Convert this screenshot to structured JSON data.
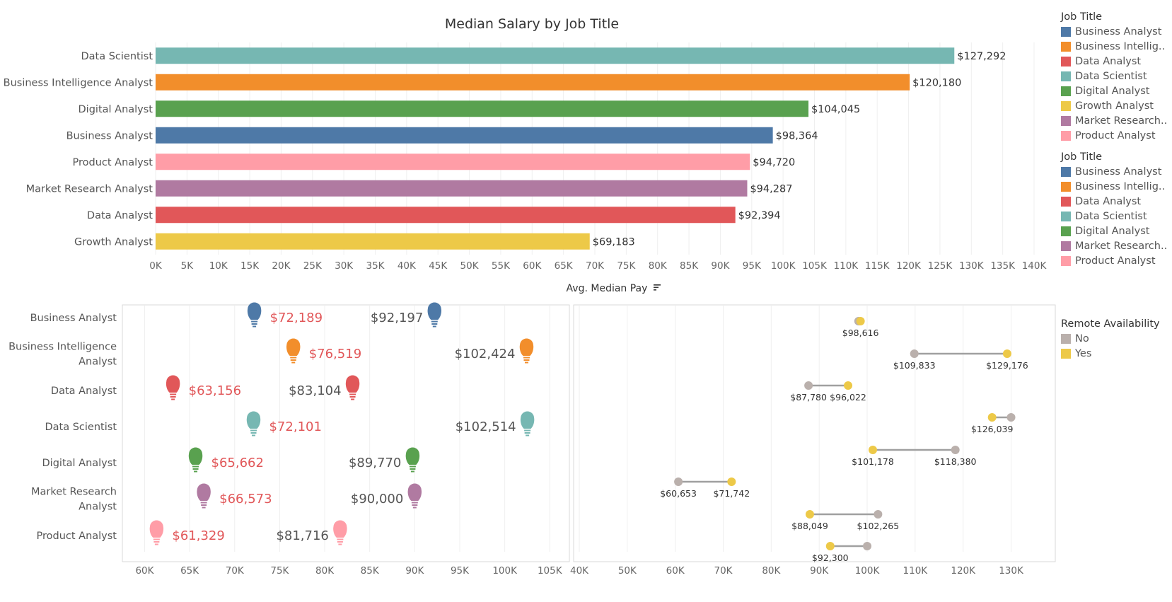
{
  "colors": {
    "Business Analyst": "#4e79a7",
    "Business Intelligence Analyst": "#f28e2b",
    "Data Analyst": "#e15759",
    "Data Scientist": "#76b7b2",
    "Digital Analyst": "#59a14f",
    "Growth Analyst": "#edc948",
    "Market Research Analyst": "#b07aa1",
    "Product Analyst": "#ff9da7",
    "remote_no": "#bab0ac",
    "remote_yes": "#edc948",
    "low_label": "#e15759",
    "high_label": "#555555"
  },
  "legends": [
    {
      "title": "Job Title",
      "items": [
        {
          "label": "Business Analyst",
          "color": "#4e79a7"
        },
        {
          "label": "Business Intellig..",
          "color": "#f28e2b"
        },
        {
          "label": "Data Analyst",
          "color": "#e15759"
        },
        {
          "label": "Data Scientist",
          "color": "#76b7b2"
        },
        {
          "label": "Digital Analyst",
          "color": "#59a14f"
        },
        {
          "label": "Growth Analyst",
          "color": "#edc948"
        },
        {
          "label": "Market Research..",
          "color": "#b07aa1"
        },
        {
          "label": "Product Analyst",
          "color": "#ff9da7"
        }
      ]
    },
    {
      "title": "Job Title",
      "items": [
        {
          "label": "Business Analyst",
          "color": "#4e79a7"
        },
        {
          "label": "Business Intellig..",
          "color": "#f28e2b"
        },
        {
          "label": "Data Analyst",
          "color": "#e15759"
        },
        {
          "label": "Data Scientist",
          "color": "#76b7b2"
        },
        {
          "label": "Digital Analyst",
          "color": "#59a14f"
        },
        {
          "label": "Market Research..",
          "color": "#b07aa1"
        },
        {
          "label": "Product Analyst",
          "color": "#ff9da7"
        }
      ]
    },
    {
      "title": "Remote Availability",
      "items": [
        {
          "label": "No",
          "color": "#bab0ac"
        },
        {
          "label": "Yes",
          "color": "#edc948"
        }
      ]
    }
  ],
  "chart_data": [
    {
      "type": "bar",
      "orientation": "horizontal",
      "title": "Median Salary by Job Title",
      "xlabel": "Avg. Median Pay",
      "sort_icon": "sort-descending-icon",
      "xlim": [
        0,
        140000
      ],
      "x_ticks": [
        0,
        5000,
        10000,
        15000,
        20000,
        25000,
        30000,
        35000,
        40000,
        45000,
        50000,
        55000,
        60000,
        65000,
        70000,
        75000,
        80000,
        85000,
        90000,
        95000,
        100000,
        105000,
        110000,
        115000,
        120000,
        125000,
        130000,
        135000,
        140000
      ],
      "x_tick_labels": [
        "0K",
        "5K",
        "10K",
        "15K",
        "20K",
        "25K",
        "30K",
        "35K",
        "40K",
        "45K",
        "50K",
        "55K",
        "60K",
        "65K",
        "70K",
        "75K",
        "80K",
        "85K",
        "90K",
        "95K",
        "100K",
        "105K",
        "110K",
        "115K",
        "120K",
        "125K",
        "130K",
        "135K",
        "140K"
      ],
      "grid": "vertical",
      "categories": [
        "Data Scientist",
        "Business Intelligence Analyst",
        "Digital Analyst",
        "Business Analyst",
        "Product Analyst",
        "Market Research Analyst",
        "Data Analyst",
        "Growth Analyst"
      ],
      "values": [
        127292,
        120180,
        104045,
        98364,
        94720,
        94287,
        92394,
        69183
      ],
      "data_labels": [
        "$127,292",
        "$120,180",
        "$104,045",
        "$98,364",
        "$94,720",
        "$94,287",
        "$92,394",
        "$69,183"
      ]
    },
    {
      "type": "scatter",
      "marker": "lightbulb-icon",
      "xlim": [
        58000,
        106000
      ],
      "x_ticks": [
        60000,
        65000,
        70000,
        75000,
        80000,
        85000,
        90000,
        95000,
        100000,
        105000
      ],
      "x_tick_labels": [
        "60K",
        "65K",
        "70K",
        "75K",
        "80K",
        "85K",
        "90K",
        "95K",
        "100K",
        "105K"
      ],
      "grid": "vertical",
      "categories": [
        "Business Analyst",
        "Business Intelligence Analyst",
        "Data Analyst",
        "Data Scientist",
        "Digital Analyst",
        "Market Research Analyst",
        "Product Analyst"
      ],
      "category_labels": [
        [
          "Business Analyst"
        ],
        [
          "Business Intelligence",
          "Analyst"
        ],
        [
          "Data Analyst"
        ],
        [
          "Data Scientist"
        ],
        [
          "Digital Analyst"
        ],
        [
          "Market Research",
          "Analyst"
        ],
        [
          "Product Analyst"
        ]
      ],
      "series": [
        {
          "values": [
            72189,
            76519,
            63156,
            72101,
            65662,
            66573,
            61329
          ],
          "data_labels": [
            "$72,189",
            "$76,519",
            "$63,156",
            "$72,101",
            "$65,662",
            "$66,573",
            "$61,329"
          ]
        },
        {
          "values": [
            92197,
            102424,
            83104,
            102514,
            89770,
            90000,
            81716
          ],
          "data_labels": [
            "$92,197",
            "$102,424",
            "$83,104",
            "$102,514",
            "$89,770",
            "$90,000",
            "$81,716"
          ]
        }
      ]
    },
    {
      "type": "dumbbell",
      "xlim": [
        40000,
        137000
      ],
      "x_ticks": [
        40000,
        50000,
        60000,
        70000,
        80000,
        90000,
        100000,
        110000,
        120000,
        130000
      ],
      "x_tick_labels": [
        "40K",
        "50K",
        "60K",
        "70K",
        "80K",
        "90K",
        "100K",
        "110K",
        "120K",
        "130K"
      ],
      "grid": "vertical",
      "rows": [
        {
          "no": 98200,
          "yes": 98616,
          "labels": [
            {
              "text": "$98,616",
              "value": 98616
            }
          ]
        },
        {
          "no": 109833,
          "yes": 129176,
          "labels": [
            {
              "text": "$109,833",
              "value": 109833
            },
            {
              "text": "$129,176",
              "value": 129176
            }
          ]
        },
        {
          "no": 87780,
          "yes": 96022,
          "labels": [
            {
              "text": "$87,780",
              "value": 87780
            },
            {
              "text": "$96,022",
              "value": 96022
            }
          ]
        },
        {
          "no": 130000,
          "yes": 126039,
          "labels": [
            {
              "text": "$126,039",
              "value": 126039
            }
          ]
        },
        {
          "no": 118380,
          "yes": 101178,
          "labels": [
            {
              "text": "$101,178",
              "value": 101178
            },
            {
              "text": "$118,380",
              "value": 118380
            }
          ]
        },
        {
          "no": 60653,
          "yes": 71742,
          "labels": [
            {
              "text": "$60,653",
              "value": 60653
            },
            {
              "text": "$71,742",
              "value": 71742
            }
          ]
        },
        {
          "no": 102265,
          "yes": 88049,
          "labels": [
            {
              "text": "$88,049",
              "value": 88049
            },
            {
              "text": "$102,265",
              "value": 102265
            }
          ]
        },
        {
          "no": 100000,
          "yes": 92300,
          "labels": [
            {
              "text": "$92,300",
              "value": 92300
            }
          ]
        }
      ]
    }
  ]
}
